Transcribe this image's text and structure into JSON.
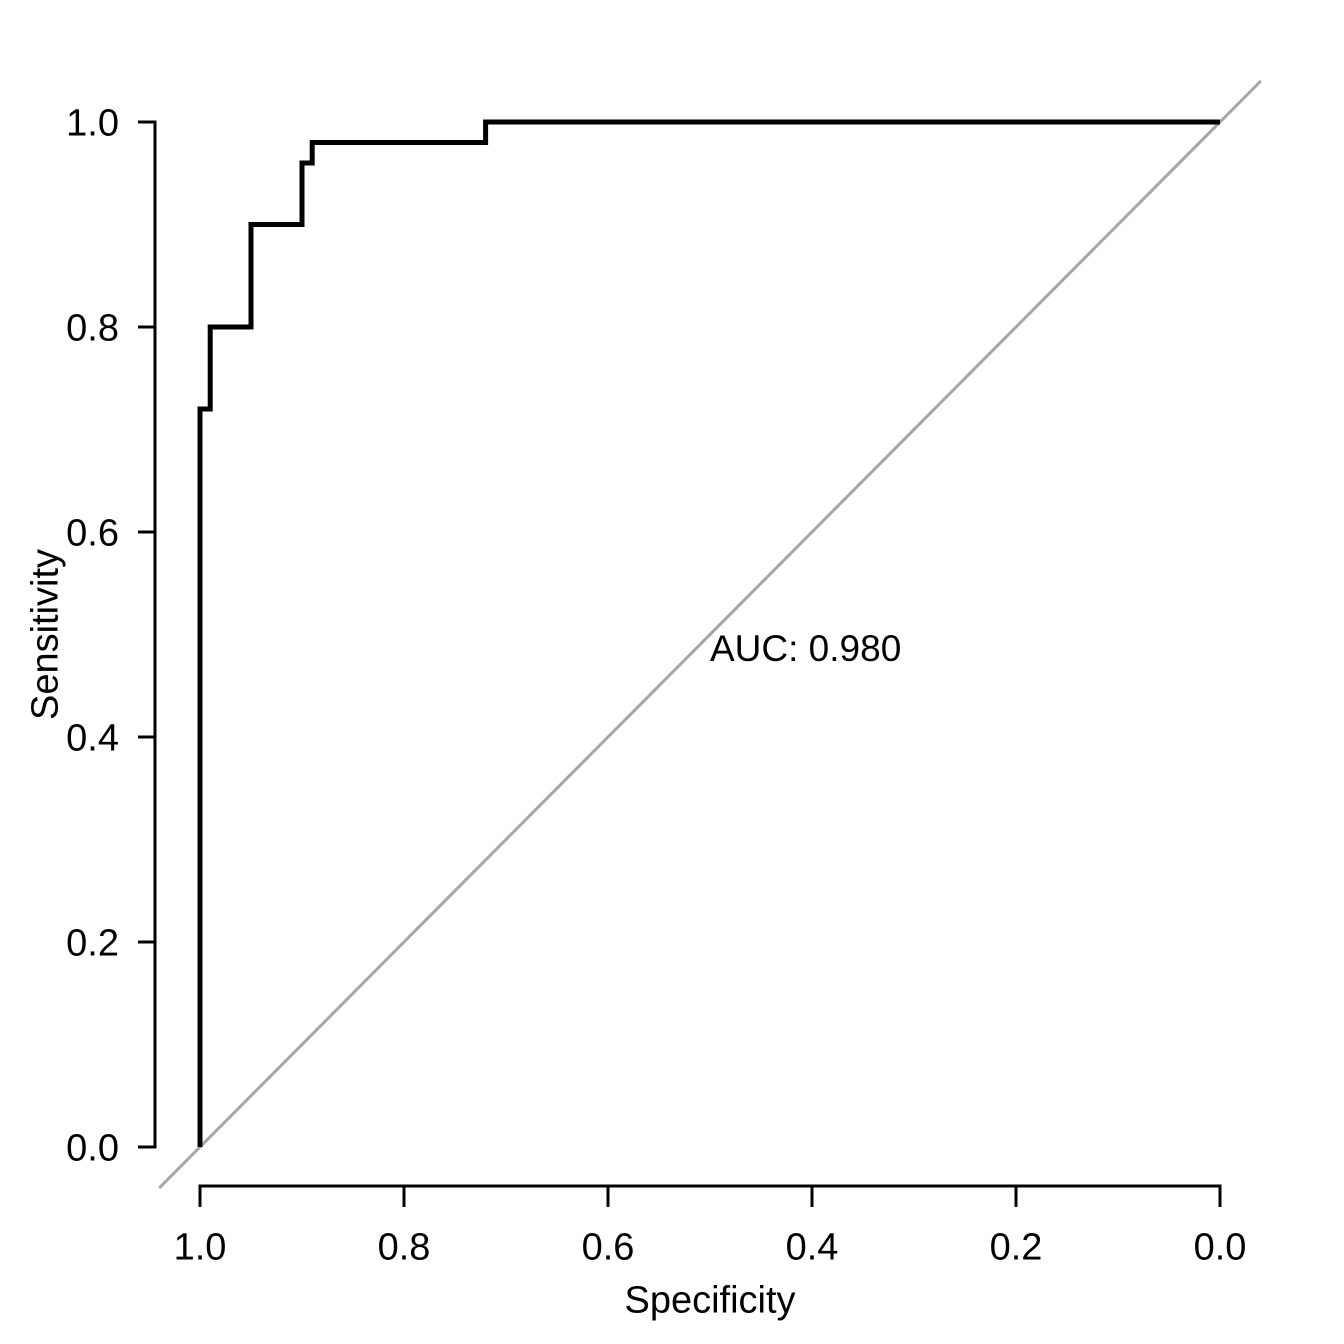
{
  "chart_data": {
    "type": "line",
    "subtype": "roc-step-curve",
    "title": "",
    "xlabel": "Specificity",
    "ylabel": "Sensitivity",
    "grid": false,
    "legend": null,
    "x_axis": {
      "reversed": true,
      "range": [
        1.0,
        0.0
      ],
      "tick_values": [
        1.0,
        0.8,
        0.6,
        0.4,
        0.2,
        0.0
      ],
      "ticks": [
        "1.0",
        "0.8",
        "0.6",
        "0.4",
        "0.2",
        "0.0"
      ]
    },
    "y_axis": {
      "range": [
        0.0,
        1.0
      ],
      "tick_values": [
        0.0,
        0.2,
        0.4,
        0.6,
        0.8,
        1.0
      ],
      "ticks": [
        "0.0",
        "0.2",
        "0.4",
        "0.6",
        "0.8",
        "1.0"
      ]
    },
    "series": [
      {
        "name": "ROC curve",
        "color": "#000000",
        "points": [
          [
            1.0,
            0.0
          ],
          [
            1.0,
            0.72
          ],
          [
            0.99,
            0.72
          ],
          [
            0.99,
            0.8
          ],
          [
            0.95,
            0.8
          ],
          [
            0.95,
            0.9
          ],
          [
            0.9,
            0.9
          ],
          [
            0.9,
            0.96
          ],
          [
            0.89,
            0.96
          ],
          [
            0.89,
            0.98
          ],
          [
            0.72,
            0.98
          ],
          [
            0.72,
            1.0
          ],
          [
            0.0,
            1.0
          ]
        ]
      }
    ],
    "reference_line": {
      "name": "chance diagonal",
      "color": "#A6A6A6",
      "from": [
        1.0,
        0.0
      ],
      "to": [
        0.0,
        1.0
      ]
    },
    "annotation": {
      "label": "AUC: 0.980",
      "x": 0.5,
      "y": 0.487,
      "align": "left"
    },
    "auc_value": 0.98
  }
}
